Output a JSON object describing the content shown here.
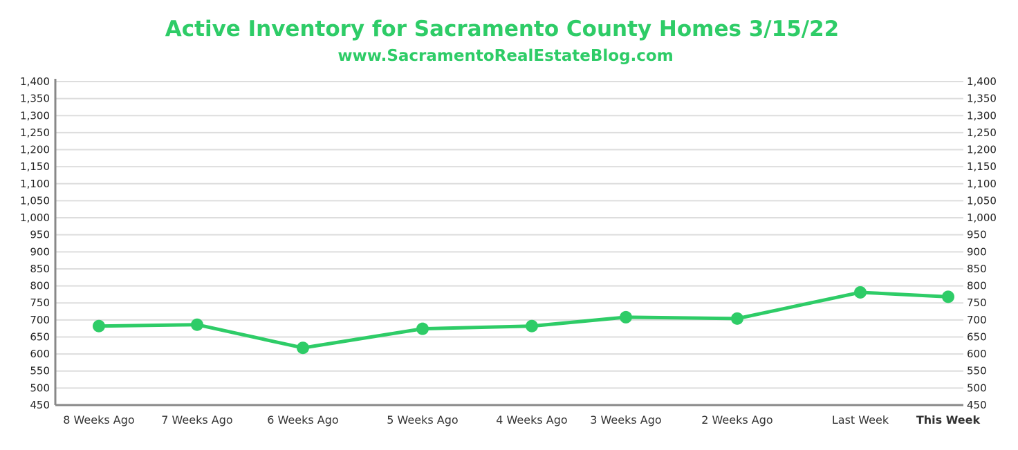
{
  "chart_data": {
    "type": "line",
    "title": "Active Inventory for Sacramento County Homes 3/15/22",
    "subtitle": "www.SacramentoRealEstateBlog.com",
    "categories": [
      "8 Weeks Ago",
      "7 Weeks Ago",
      "6 Weeks Ago",
      "5 Weeks Ago",
      "4 Weeks Ago",
      "3 Weeks Ago",
      "2 Weeks Ago",
      "Last Week",
      "This Week"
    ],
    "series": [
      {
        "values": [
          682,
          686,
          618,
          674,
          682,
          708,
          704,
          781,
          768
        ]
      }
    ],
    "y_ticks": [
      "450",
      "500",
      "550",
      "600",
      "650",
      "700",
      "750",
      "800",
      "850",
      "900",
      "950",
      "1,000",
      "1,050",
      "1,100",
      "1,150",
      "1,200",
      "1,250",
      "1,300",
      "1,350",
      "1,400"
    ],
    "ylim": [
      450,
      1400
    ],
    "y_step": 50,
    "secondary_y_axis": true,
    "grid": true,
    "highlight_category": "This Week",
    "colors": {
      "accent": "#2ECC67",
      "grid": "#DDDDDD",
      "axis": "#888888",
      "text": "#222222"
    }
  }
}
